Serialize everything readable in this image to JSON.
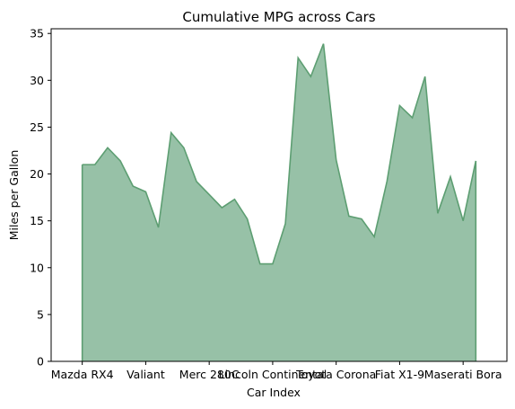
{
  "chart_data": {
    "type": "area",
    "title": "Cumulative MPG across Cars",
    "xlabel": "Car Index",
    "ylabel": "Miles per Gallon",
    "x": [
      0,
      1,
      2,
      3,
      4,
      5,
      6,
      7,
      8,
      9,
      10,
      11,
      12,
      13,
      14,
      15,
      16,
      17,
      18,
      19,
      20,
      21,
      22,
      23,
      24,
      25,
      26,
      27,
      28,
      29,
      30,
      31
    ],
    "values": [
      21.0,
      21.0,
      22.8,
      21.4,
      18.7,
      18.1,
      14.3,
      24.4,
      22.8,
      19.2,
      17.8,
      16.4,
      17.3,
      15.2,
      10.4,
      10.4,
      14.7,
      32.4,
      30.4,
      33.9,
      21.5,
      15.5,
      15.2,
      13.3,
      19.2,
      27.3,
      26.0,
      30.4,
      15.8,
      19.7,
      15.0,
      21.4
    ],
    "xlim": [
      -2.45,
      33.45
    ],
    "ylim": [
      0,
      35.5
    ],
    "xticks": [
      {
        "x": 0,
        "label": "Mazda RX4"
      },
      {
        "x": 5,
        "label": "Valiant"
      },
      {
        "x": 10,
        "label": "Merc 280C"
      },
      {
        "x": 15,
        "label": "Lincoln Continental"
      },
      {
        "x": 20,
        "label": "Toyota Corona"
      },
      {
        "x": 25,
        "label": "Fiat X1-9"
      },
      {
        "x": 30,
        "label": "Maserati Bora"
      }
    ],
    "yticks": [
      0,
      5,
      10,
      15,
      20,
      25,
      30,
      35
    ],
    "grid": false,
    "fill_color": "#97c1a7",
    "line_color": "#5d9e72"
  }
}
